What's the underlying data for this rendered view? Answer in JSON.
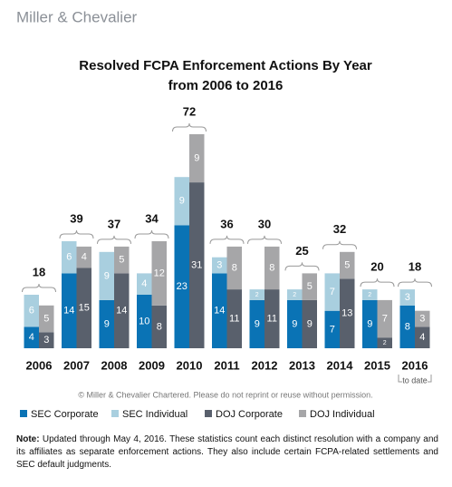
{
  "logo": "Miller & Chevalier",
  "chart_data": {
    "type": "grouped-stacked-bar",
    "title": "Resolved FCPA Enforcement Actions By Year",
    "subtitle": "from 2006 to 2016",
    "categories": [
      "2006",
      "2007",
      "2008",
      "2009",
      "2010",
      "2011",
      "2012",
      "2013",
      "2014",
      "2015",
      "2016"
    ],
    "series": [
      {
        "name": "SEC Corporate",
        "color": "#0a73b5",
        "values": [
          4,
          14,
          9,
          10,
          23,
          14,
          9,
          9,
          7,
          9,
          8
        ]
      },
      {
        "name": "SEC Individual",
        "color": "#a9cfdf",
        "values": [
          6,
          6,
          9,
          4,
          9,
          3,
          2,
          2,
          7,
          2,
          3
        ]
      },
      {
        "name": "DOJ Corporate",
        "color": "#59606c",
        "values": [
          3,
          15,
          14,
          8,
          31,
          11,
          11,
          9,
          13,
          2,
          4
        ]
      },
      {
        "name": "DOJ Individual",
        "color": "#a6a6a8",
        "values": [
          5,
          4,
          5,
          12,
          9,
          8,
          8,
          5,
          5,
          7,
          3
        ]
      }
    ],
    "totals": [
      18,
      39,
      37,
      34,
      72,
      36,
      30,
      25,
      32,
      20,
      18
    ],
    "annotation": "to date",
    "source": "© Miller & Chevalier Chartered. Please do not reprint or reuse without permission."
  },
  "note": {
    "label": "Note:",
    "text": "Updated through May 4, 2016. These statistics count each distinct resolution with a company and its affiliates as separate enforcement actions. They also include certain FCPA-related settlements and SEC default judgments."
  }
}
